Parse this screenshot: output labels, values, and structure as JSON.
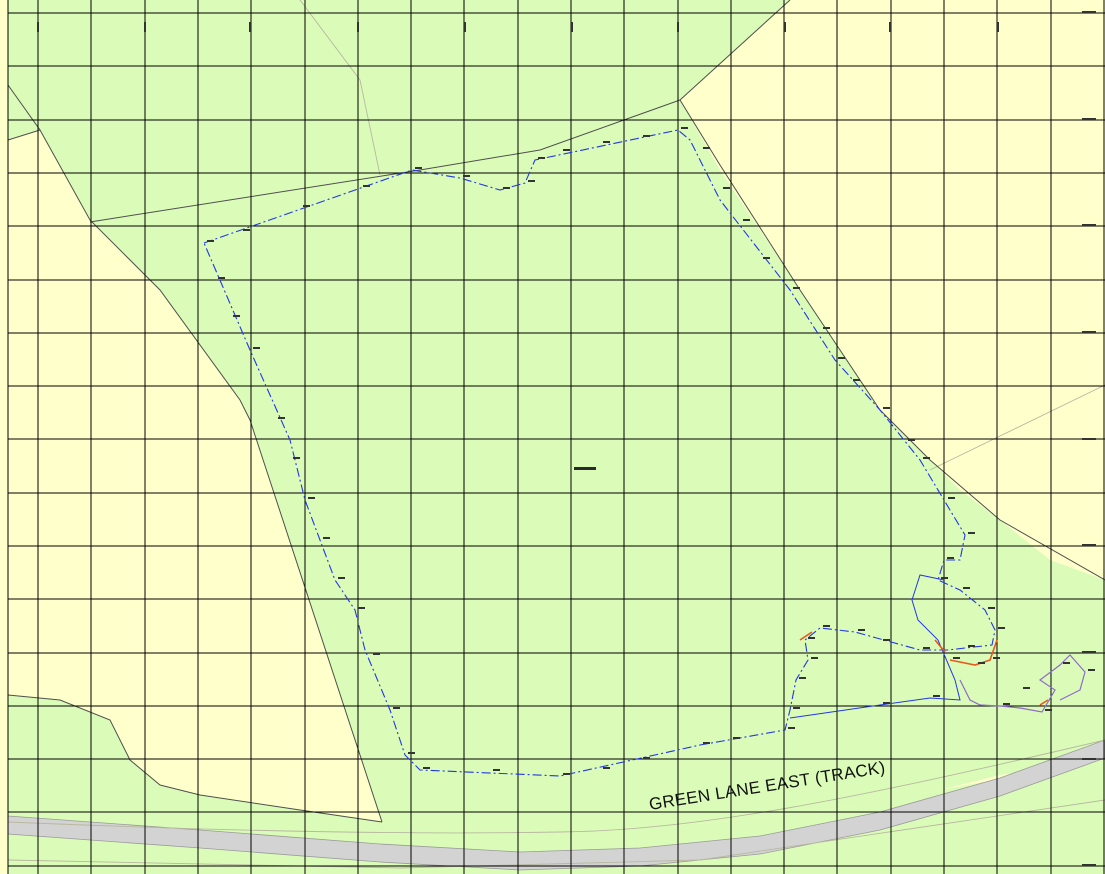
{
  "map": {
    "road_label": "GREEN LANE EAST (TRACK)",
    "colors": {
      "background": "#ffffcc",
      "green_area": "#dbfcb8",
      "grid": "#000000",
      "parcel_edge": "#4f4f4f",
      "boundary": "#2437e6",
      "road_fill": "#d3d3d3",
      "path_orange": "#e85a1c",
      "path_purple": "#8e6bc9"
    },
    "features": [
      "site-boundary",
      "field-edges",
      "grid",
      "track",
      "survey-points"
    ]
  }
}
